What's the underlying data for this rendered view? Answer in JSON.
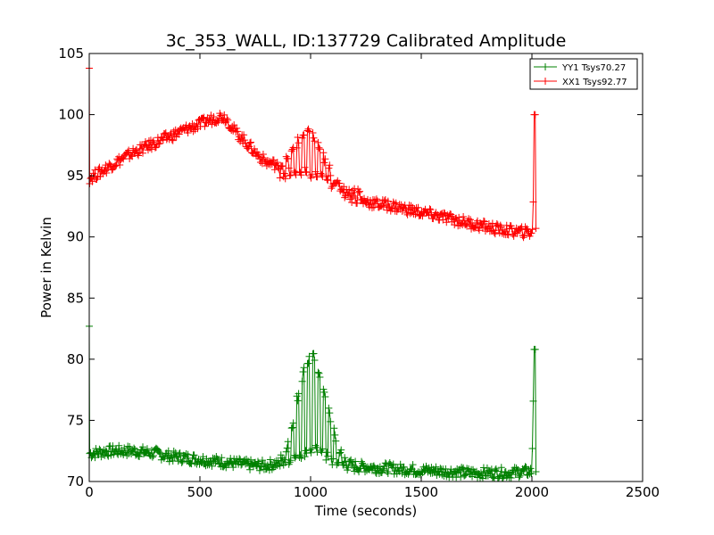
{
  "chart_data": {
    "type": "line",
    "title": "3c_353_WALL, ID:137729 Calibrated Amplitude",
    "xlabel": "Time (seconds)",
    "ylabel": "Power in Kelvin",
    "xlim": [
      0,
      2500
    ],
    "ylim": [
      70,
      105
    ],
    "xticks": [
      "0",
      "500",
      "1000",
      "1500",
      "2000",
      "2500"
    ],
    "yticks": [
      "70",
      "75",
      "80",
      "85",
      "90",
      "95",
      "100",
      "105"
    ],
    "grid": false,
    "legend_position": "top-right",
    "series": [
      {
        "name": "YY1 Tsys70.27",
        "color": "#008000",
        "marker": "plus",
        "sampled_x": [
          0,
          2,
          10,
          50,
          100,
          150,
          200,
          250,
          300,
          350,
          400,
          450,
          500,
          550,
          600,
          650,
          700,
          750,
          800,
          850,
          880,
          900,
          920,
          940,
          960,
          980,
          1000,
          1020,
          1040,
          1060,
          1080,
          1100,
          1120,
          1140,
          1160,
          1180,
          1200,
          1220,
          1240,
          1260,
          1300,
          1350,
          1400,
          1450,
          1500,
          1550,
          1600,
          1650,
          1700,
          1750,
          1800,
          1850,
          1900,
          1950,
          2000,
          2010,
          2015,
          2020
        ],
        "sampled_y": [
          82.7,
          72.3,
          72.3,
          72.4,
          72.5,
          72.5,
          72.5,
          72.4,
          72.3,
          72.1,
          72.0,
          71.9,
          71.8,
          71.7,
          71.6,
          71.5,
          71.4,
          71.3,
          71.3,
          71.5,
          72.2,
          73.4,
          75.0,
          76.8,
          78.4,
          79.6,
          80.2,
          80.0,
          79.0,
          77.6,
          75.9,
          74.3,
          73.1,
          72.2,
          71.7,
          71.4,
          71.3,
          71.2,
          71.2,
          71.2,
          71.1,
          71.1,
          71.0,
          71.0,
          70.9,
          70.9,
          70.8,
          70.8,
          70.7,
          70.7,
          70.7,
          70.7,
          70.7,
          70.8,
          70.8,
          80.8,
          80.8,
          70.8
        ]
      },
      {
        "name": "XX1 Tsys92.77",
        "color": "#ff0000",
        "marker": "plus",
        "sampled_x": [
          0,
          2,
          10,
          50,
          100,
          150,
          200,
          250,
          300,
          350,
          400,
          450,
          500,
          550,
          580,
          600,
          620,
          650,
          700,
          750,
          800,
          850,
          880,
          900,
          920,
          940,
          960,
          980,
          1000,
          1020,
          1040,
          1060,
          1080,
          1100,
          1120,
          1140,
          1160,
          1180,
          1200,
          1250,
          1300,
          1350,
          1400,
          1450,
          1500,
          1550,
          1600,
          1650,
          1700,
          1750,
          1800,
          1850,
          1900,
          1950,
          2000,
          2005,
          2010,
          2015,
          2020
        ],
        "sampled_y": [
          103.8,
          94.8,
          94.9,
          95.3,
          95.9,
          96.4,
          96.9,
          97.3,
          97.7,
          98.1,
          98.5,
          98.9,
          99.2,
          99.6,
          99.8,
          99.9,
          99.7,
          98.8,
          97.9,
          96.9,
          96.1,
          95.9,
          96.0,
          96.4,
          97.0,
          97.7,
          98.2,
          98.4,
          98.4,
          98.0,
          97.3,
          96.5,
          95.7,
          95.0,
          94.4,
          93.9,
          93.5,
          93.3,
          93.1,
          92.9,
          92.7,
          92.6,
          92.4,
          92.2,
          92.0,
          91.8,
          91.6,
          91.4,
          91.2,
          91.0,
          90.8,
          90.6,
          90.5,
          90.4,
          90.4,
          90.7,
          100.0,
          100.0,
          90.7
        ]
      }
    ]
  }
}
